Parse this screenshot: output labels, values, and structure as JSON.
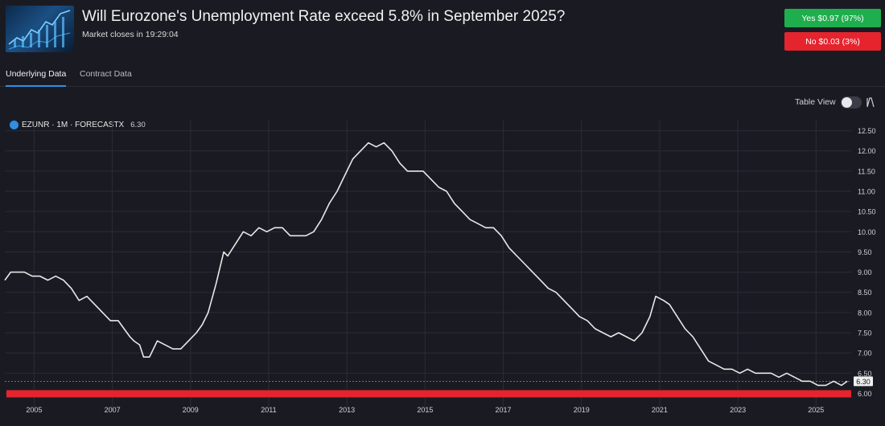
{
  "header": {
    "title": "Will Eurozone's Unemployment Rate exceed 5.8% in September 2025?",
    "subtitle": "Market closes in 19:29:04",
    "yes_label": "Yes $0.97 (97%)",
    "no_label": "No $0.03 (3%)",
    "thumbnail_icon": "stock-chart-thumbnail"
  },
  "tabs": [
    {
      "label": "Underlying Data",
      "active": true
    },
    {
      "label": "Contract Data",
      "active": false
    }
  ],
  "controls": {
    "table_view_label": "Table View",
    "table_view_on": false
  },
  "legend": {
    "symbol": "EZUNR · 1M · FORECASTX",
    "value": "6.30"
  },
  "chart_data": {
    "type": "line",
    "title": "",
    "xlabel": "",
    "ylabel": "",
    "xlim": [
      2004.3,
      2025.95
    ],
    "ylim": [
      5.75,
      12.75
    ],
    "x_ticks": [
      "2005",
      "2007",
      "2009",
      "2011",
      "2013",
      "2015",
      "2017",
      "2019",
      "2021",
      "2023",
      "2025"
    ],
    "y_ticks": [
      "12.50",
      "12.00",
      "11.50",
      "11.00",
      "10.50",
      "10.00",
      "9.50",
      "9.00",
      "8.50",
      "8.00",
      "7.50",
      "7.00",
      "6.50",
      "6.00"
    ],
    "last_value_label": "6.30",
    "threshold": {
      "value": 6.0,
      "color": "#e5242e"
    },
    "line_color": "#e8e8e8",
    "series": [
      {
        "x": [
          2004.3,
          2004.45,
          2004.8,
          2005.0,
          2005.2,
          2005.4,
          2005.6,
          2005.8,
          2006.0,
          2006.2,
          2006.4,
          2006.6,
          2006.8,
          2007.0,
          2007.2,
          2007.35,
          2007.5,
          2007.6,
          2007.75,
          2007.85,
          2008.0,
          2008.2,
          2008.4,
          2008.6,
          2008.8,
          2009.0,
          2009.2,
          2009.35,
          2009.5,
          2009.7,
          2009.9,
          2010.0,
          2010.2,
          2010.4,
          2010.6,
          2010.8,
          2011.0,
          2011.2,
          2011.4,
          2011.6,
          2011.8,
          2012.0,
          2012.2,
          2012.4,
          2012.6,
          2012.8,
          2013.0,
          2013.2,
          2013.4,
          2013.6,
          2013.8,
          2014.0,
          2014.2,
          2014.4,
          2014.6,
          2014.8,
          2015.0,
          2015.2,
          2015.4,
          2015.6,
          2015.8,
          2016.0,
          2016.2,
          2016.4,
          2016.6,
          2016.8,
          2017.0,
          2017.2,
          2017.4,
          2017.6,
          2017.8,
          2018.0,
          2018.2,
          2018.4,
          2018.6,
          2018.8,
          2019.0,
          2019.2,
          2019.4,
          2019.6,
          2019.8,
          2020.0,
          2020.2,
          2020.4,
          2020.6,
          2020.8,
          2020.95,
          2021.15,
          2021.3,
          2021.5,
          2021.7,
          2021.9,
          2022.1,
          2022.3,
          2022.5,
          2022.7,
          2022.9,
          2023.1,
          2023.3,
          2023.5,
          2023.7,
          2023.9,
          2024.1,
          2024.3,
          2024.5,
          2024.7,
          2024.9,
          2025.1,
          2025.3,
          2025.5,
          2025.7,
          2025.85
        ],
        "y": [
          8.8,
          9.0,
          9.0,
          8.9,
          8.9,
          8.8,
          8.9,
          8.8,
          8.6,
          8.3,
          8.4,
          8.2,
          8.0,
          7.8,
          7.8,
          7.6,
          7.4,
          7.3,
          7.2,
          6.9,
          6.9,
          7.3,
          7.2,
          7.1,
          7.1,
          7.3,
          7.5,
          7.7,
          8.0,
          8.7,
          9.5,
          9.4,
          9.7,
          10.0,
          9.9,
          10.1,
          10.0,
          10.1,
          10.1,
          9.9,
          9.9,
          9.9,
          10.0,
          10.3,
          10.7,
          11.0,
          11.4,
          11.8,
          12.0,
          12.2,
          12.1,
          12.2,
          12.0,
          11.7,
          11.5,
          11.5,
          11.5,
          11.3,
          11.1,
          11.0,
          10.7,
          10.5,
          10.3,
          10.2,
          10.1,
          10.1,
          9.9,
          9.6,
          9.4,
          9.2,
          9.0,
          8.8,
          8.6,
          8.5,
          8.3,
          8.1,
          7.9,
          7.8,
          7.6,
          7.5,
          7.4,
          7.5,
          7.4,
          7.3,
          7.5,
          7.9,
          8.4,
          8.3,
          8.2,
          7.9,
          7.6,
          7.4,
          7.1,
          6.8,
          6.7,
          6.6,
          6.6,
          6.5,
          6.6,
          6.5,
          6.5,
          6.5,
          6.4,
          6.5,
          6.4,
          6.3,
          6.3,
          6.2,
          6.2,
          6.3,
          6.2,
          6.3
        ]
      }
    ]
  }
}
